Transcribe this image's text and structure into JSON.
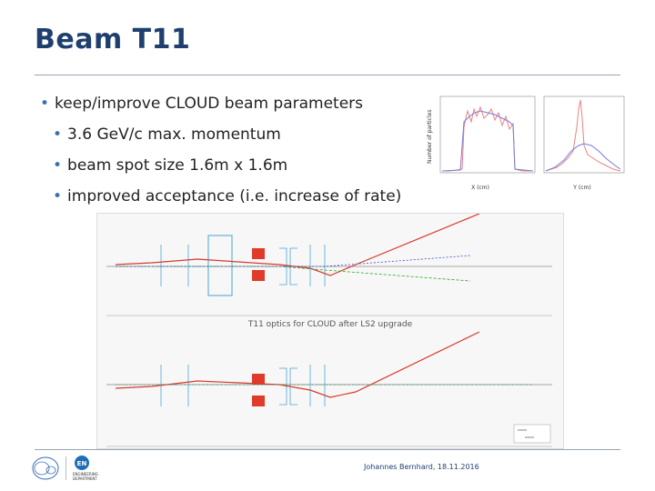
{
  "slide": {
    "title": "Beam T11",
    "bullets": [
      {
        "level": 1,
        "text": "keep/improve CLOUD beam parameters"
      },
      {
        "level": 2,
        "text": "3.6 GeV/c max. momentum"
      },
      {
        "level": 2,
        "text": "beam spot size 1.6m x 1.6m"
      },
      {
        "level": 2,
        "text": "improved acceptance (i.e. increase of rate)"
      }
    ]
  },
  "histograms": {
    "ylabel": "Number of particles",
    "left_xlabel": "X (cm)",
    "right_xlabel": "Y (cm)"
  },
  "optics": {
    "caption": "T11 optics for CLOUD after LS2 upgrade"
  },
  "footer": {
    "author_date": "Johannes Bernhard, 18.11.2016",
    "en_logo_text": "EN",
    "en_sub": "ENGINEERING DEPARTMENT"
  },
  "colors": {
    "title": "#1f3f6f",
    "bullet_dot": "#3a6fb0"
  }
}
